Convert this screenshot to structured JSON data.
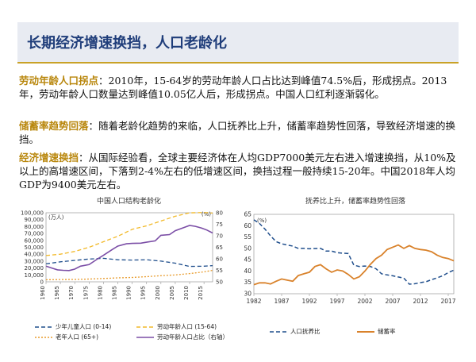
{
  "slide": {
    "title": "长期经济增速换挡，人口老龄化",
    "p1_kw": "劳动年龄人口拐点",
    "p1_text": "：2010年，15-64岁的劳动年龄人口占比达到峰值74.5%后，形成拐点。2013年，劳动年龄人口数量达到峰值10.05亿人后，形成拐点。中国人口红利逐渐弱化。",
    "p2_kw": "储蓄率趋势回落",
    "p2_text": "：随着老龄化趋势的来临，人口抚养比上升，储蓄率趋势性回落，导致经济增速的换挡。",
    "p3_kw": "经济增速换挡",
    "p3_text": "：从国际经验看，全球主要经济体在人均GDP7000美元左右进入增速换挡，从10%及以上的高增速区间，下落到2-4%左右的低增速区间，换挡过程一般持续15-20年。中国2018年人均GDP为9400美元左右。"
  },
  "chart_data": [
    {
      "type": "line",
      "title": "中国人口结构老龄化",
      "y_unit_left": "(万人)",
      "y_unit_right": "(%)",
      "ylim_left": [
        0,
        100000
      ],
      "ylim_right": [
        50,
        80
      ],
      "xlim": [
        1960,
        2018
      ],
      "x_ticks": [
        1960,
        1965,
        1970,
        1975,
        1980,
        1985,
        1990,
        1995,
        2000,
        2005,
        2010,
        2015
      ],
      "y_ticks_left": [
        "0",
        "10,000",
        "20,000",
        "30,000",
        "40,000",
        "50,000",
        "60,000",
        "70,000",
        "80,000",
        "90,000",
        "100,000"
      ],
      "y_ticks_right": [
        "50",
        "55",
        "60",
        "65",
        "70",
        "75",
        "80"
      ],
      "series": [
        {
          "name": "少年儿童人口 (0-14)",
          "axis": "left",
          "color": "#1f4e8c",
          "dash": "5,3",
          "x": [
            1960,
            1965,
            1970,
            1975,
            1980,
            1985,
            1990,
            1995,
            2000,
            2005,
            2010,
            2015,
            2018
          ],
          "values": [
            26000,
            29000,
            31000,
            33000,
            34000,
            32000,
            31500,
            32000,
            30000,
            27000,
            22300,
            22700,
            23500
          ]
        },
        {
          "name": "劳动年龄人口 (15-64)",
          "axis": "left",
          "color": "#f2b928",
          "dash": "5,3",
          "x": [
            1960,
            1965,
            1970,
            1975,
            1980,
            1985,
            1990,
            1995,
            2000,
            2005,
            2010,
            2015,
            2018
          ],
          "values": [
            38000,
            40000,
            44000,
            50000,
            58000,
            66000,
            76000,
            81000,
            88000,
            95000,
            99900,
            100300,
            99500
          ]
        },
        {
          "name": "老年人口 (65+)",
          "axis": "left",
          "color": "#e89b2c",
          "dash": "2,2",
          "x": [
            1960,
            1965,
            1970,
            1975,
            1980,
            1985,
            1990,
            1995,
            2000,
            2005,
            2010,
            2015,
            2018
          ],
          "values": [
            3000,
            3300,
            3500,
            4000,
            4800,
            5700,
            6300,
            7500,
            8800,
            10000,
            11900,
            14400,
            16700
          ]
        },
        {
          "name": "劳动年龄人口占比（右轴）",
          "axis": "right",
          "color": "#7b4ea6",
          "dash": "",
          "x": [
            1960,
            1962,
            1964,
            1966,
            1968,
            1970,
            1972,
            1975,
            1978,
            1980,
            1983,
            1985,
            1988,
            1990,
            1993,
            1995,
            1998,
            2000,
            2003,
            2005,
            2008,
            2010,
            2012,
            2014,
            2016,
            2018
          ],
          "values": [
            56.8,
            56.0,
            55.2,
            55.0,
            54.9,
            55.5,
            56.8,
            57.5,
            60.0,
            61.5,
            64.0,
            65.5,
            66.5,
            66.7,
            66.8,
            67.2,
            67.8,
            70.2,
            70.5,
            72.2,
            73.6,
            74.5,
            74.1,
            73.4,
            72.5,
            71.2
          ]
        }
      ],
      "legend": [
        "少年儿童人口 (0-14)",
        "劳动年龄人口 (15-64)",
        "老年人口 (65+)",
        "劳动年龄人口占比（右轴）"
      ]
    },
    {
      "type": "line",
      "title": "抚养比上升，储蓄率趋势性回落",
      "y_unit": "(%)",
      "ylim": [
        30,
        65
      ],
      "xlim": [
        1982,
        2018
      ],
      "x_ticks": [
        1982,
        1987,
        1992,
        1997,
        2002,
        2007,
        2012,
        2017
      ],
      "y_ticks": [
        "30",
        "35",
        "40",
        "45",
        "50",
        "55",
        "60",
        "65"
      ],
      "series": [
        {
          "name": "人口抚养比",
          "color": "#1f4e8c",
          "dash": "5,3",
          "x": [
            1982,
            1983,
            1984,
            1985,
            1986,
            1987,
            1988,
            1989,
            1990,
            1991,
            1992,
            1993,
            1994,
            1995,
            1996,
            1997,
            1998,
            1999,
            2000,
            2001,
            2002,
            2003,
            2004,
            2005,
            2006,
            2007,
            2008,
            2009,
            2010,
            2011,
            2012,
            2013,
            2014,
            2015,
            2016,
            2017,
            2018
          ],
          "values": [
            62.6,
            61.0,
            58.5,
            55.5,
            53.0,
            52.0,
            51.5,
            51.0,
            50.0,
            50.0,
            49.8,
            49.9,
            50.0,
            48.8,
            48.8,
            48.1,
            47.9,
            47.7,
            42.6,
            42.0,
            42.2,
            42.0,
            41.0,
            38.8,
            38.3,
            37.9,
            37.4,
            36.9,
            34.2,
            34.4,
            34.9,
            35.3,
            36.2,
            37.0,
            37.9,
            39.3,
            40.4
          ]
        },
        {
          "name": "储蓄率",
          "color": "#d9822b",
          "dash": "",
          "x": [
            1982,
            1983,
            1984,
            1985,
            1986,
            1987,
            1988,
            1989,
            1990,
            1991,
            1992,
            1993,
            1994,
            1995,
            1996,
            1997,
            1998,
            1999,
            2000,
            2001,
            2002,
            2003,
            2004,
            2005,
            2006,
            2007,
            2008,
            2009,
            2010,
            2011,
            2012,
            2013,
            2014,
            2015,
            2016,
            2017,
            2018
          ],
          "values": [
            34.0,
            34.8,
            34.8,
            34.3,
            35.5,
            36.5,
            36.0,
            35.5,
            38.0,
            38.8,
            39.5,
            42.0,
            42.8,
            41.0,
            39.5,
            40.5,
            40.0,
            38.5,
            36.5,
            37.5,
            40.0,
            43.0,
            45.5,
            47.0,
            49.5,
            50.5,
            51.5,
            50.0,
            51.2,
            50.0,
            49.5,
            49.2,
            48.5,
            47.0,
            46.0,
            45.5,
            44.5
          ]
        }
      ],
      "legend": [
        "人口抚养比",
        "储蓄率"
      ]
    }
  ]
}
